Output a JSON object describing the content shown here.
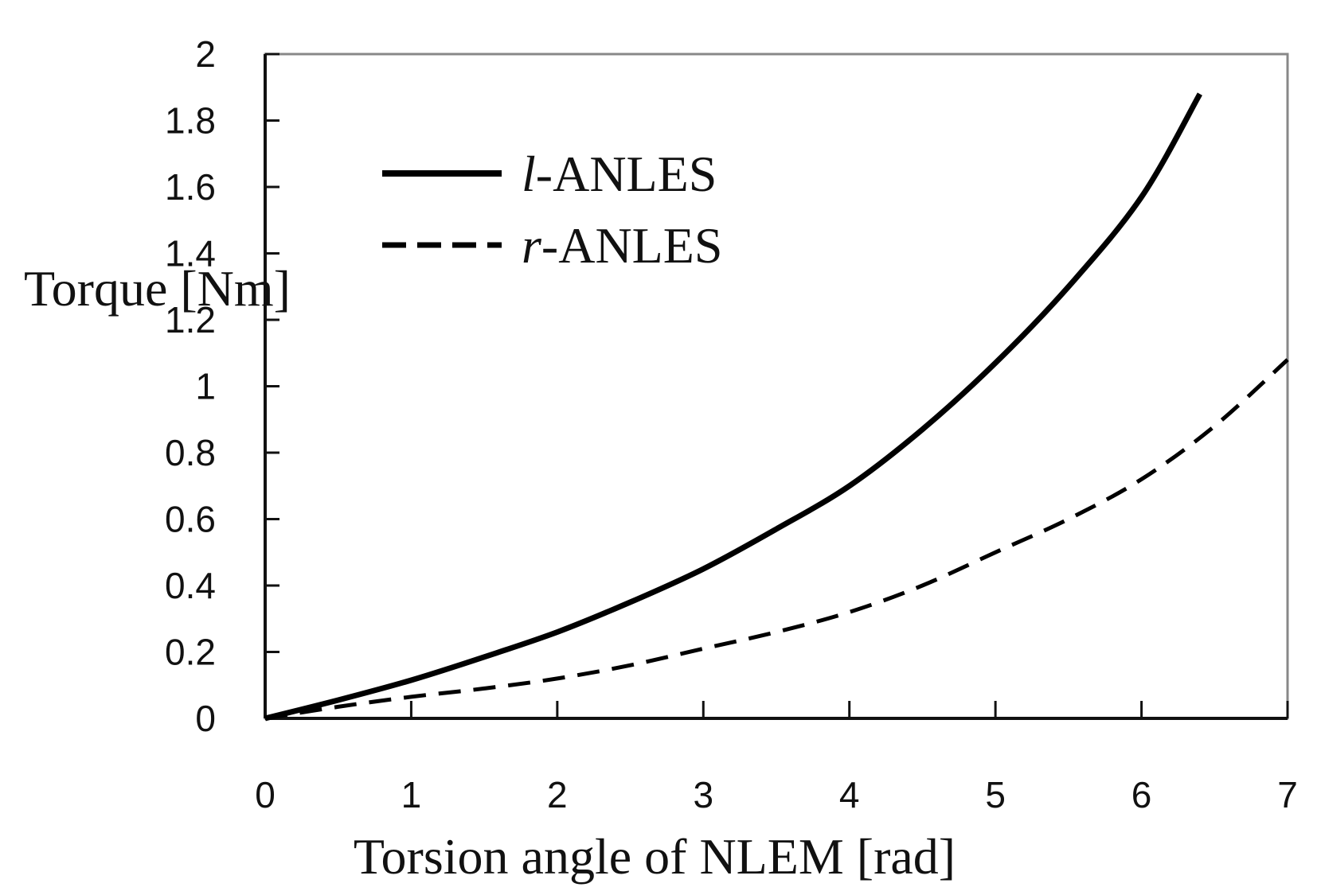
{
  "chart_data": {
    "type": "line",
    "title": "",
    "xlabel": "Torsion angle of NLEM [rad]",
    "ylabel": "Torque [Nm]",
    "xlim": [
      0,
      7
    ],
    "ylim": [
      0,
      2
    ],
    "xticks": [
      0,
      1,
      2,
      3,
      4,
      5,
      6,
      7
    ],
    "yticks": [
      0,
      0.2,
      0.4,
      0.6,
      0.8,
      1,
      1.2,
      1.4,
      1.6,
      1.8,
      2
    ],
    "ytick_labels": [
      "0",
      "0.2",
      "0.4",
      "0.6",
      "0.8",
      "1",
      "1.2",
      "1.4",
      "1.6",
      "1.8",
      "2"
    ],
    "grid": false,
    "legend_position": "top-left",
    "series": [
      {
        "name": "l-ANLES",
        "name_prefix": "l",
        "name_suffix": "-ANLES",
        "style": "solid",
        "color": "#000000",
        "x": [
          0,
          0.5,
          1,
          1.5,
          2,
          2.5,
          3,
          3.5,
          4,
          4.5,
          5,
          5.5,
          6,
          6.4
        ],
        "y": [
          0,
          0.055,
          0.115,
          0.185,
          0.26,
          0.35,
          0.45,
          0.57,
          0.7,
          0.87,
          1.07,
          1.3,
          1.57,
          1.88
        ]
      },
      {
        "name": "r-ANLES",
        "name_prefix": "r",
        "name_suffix": "-ANLES",
        "style": "dashed",
        "color": "#000000",
        "x": [
          0,
          0.5,
          1,
          1.5,
          2,
          2.5,
          3,
          3.5,
          4,
          4.5,
          5,
          5.5,
          6,
          6.5,
          7
        ],
        "y": [
          0,
          0.035,
          0.065,
          0.09,
          0.12,
          0.16,
          0.21,
          0.26,
          0.32,
          0.4,
          0.5,
          0.6,
          0.72,
          0.88,
          1.08
        ]
      }
    ]
  }
}
